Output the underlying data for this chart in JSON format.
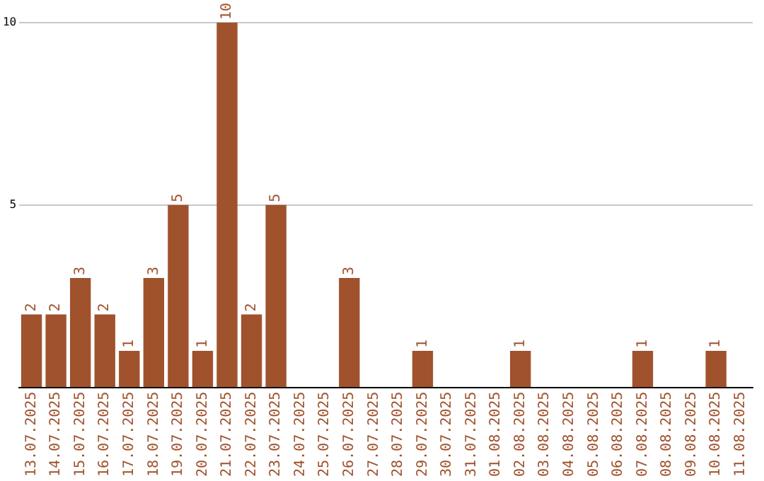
{
  "chart_data": {
    "type": "bar",
    "categories": [
      "13.07.2025",
      "14.07.2025",
      "15.07.2025",
      "16.07.2025",
      "17.07.2025",
      "18.07.2025",
      "19.07.2025",
      "20.07.2025",
      "21.07.2025",
      "22.07.2025",
      "23.07.2025",
      "24.07.2025",
      "25.07.2025",
      "26.07.2025",
      "27.07.2025",
      "28.07.2025",
      "29.07.2025",
      "30.07.2025",
      "31.07.2025",
      "01.08.2025",
      "02.08.2025",
      "03.08.2025",
      "04.08.2025",
      "05.08.2025",
      "06.08.2025",
      "07.08.2025",
      "08.08.2025",
      "09.08.2025",
      "10.08.2025",
      "11.08.2025"
    ],
    "values": [
      2,
      2,
      3,
      2,
      1,
      3,
      5,
      1,
      10,
      2,
      5,
      0,
      0,
      3,
      0,
      0,
      1,
      0,
      0,
      0,
      1,
      0,
      0,
      0,
      0,
      1,
      0,
      0,
      1,
      0
    ],
    "value_labels": [
      "2",
      "2",
      "3",
      "2",
      "1",
      "3",
      "5",
      "1",
      "10",
      "2",
      "5",
      null,
      null,
      "3",
      null,
      null,
      "1",
      null,
      null,
      null,
      "1",
      null,
      null,
      null,
      null,
      "1",
      null,
      null,
      "1",
      null
    ],
    "color": "#a0522d",
    "ylim": [
      0,
      10
    ],
    "yticks": [
      5,
      10
    ],
    "grid": "y",
    "legend": false
  }
}
